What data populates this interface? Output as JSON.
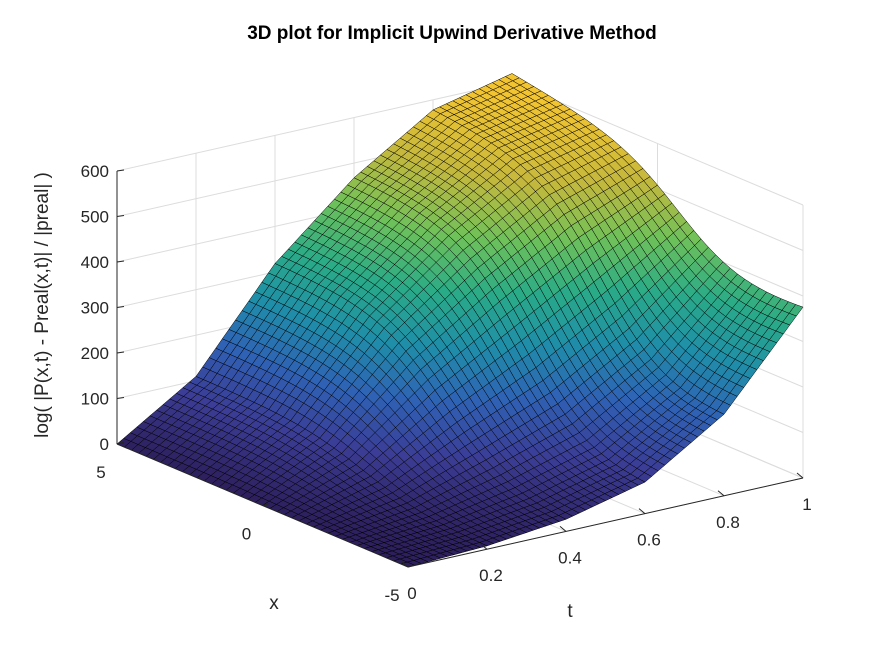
{
  "chart_data": {
    "type": "surface",
    "title": "3D plot for Implicit Upwind Derivative Method",
    "xlabel": "t",
    "ylabel": "x",
    "zlabel": "log( |P(x,t) - Preal(x,t)| / |preal| )",
    "t_range": [
      0,
      1
    ],
    "x_range": [
      -5,
      5
    ],
    "z_range": [
      0,
      600
    ],
    "t_ticks": [
      0,
      0.2,
      0.4,
      0.6,
      0.8,
      1
    ],
    "t_tick_labels": [
      "0",
      "0.2",
      "0.4",
      "0.6",
      "0.8",
      "1"
    ],
    "x_ticks": [
      -5,
      0,
      5
    ],
    "x_tick_labels": [
      "-5",
      "0",
      "5"
    ],
    "z_ticks": [
      0,
      100,
      200,
      300,
      400,
      500,
      600
    ],
    "z_tick_labels": [
      "0",
      "100",
      "200",
      "300",
      "400",
      "500",
      "600"
    ],
    "grid": true,
    "colormap": [
      "#2d1f5c",
      "#3b3d96",
      "#2f62b5",
      "#1f8ea9",
      "#2aab87",
      "#6fc15a",
      "#c4b83d",
      "#f2c430"
    ],
    "edge_color": "#000000",
    "surface_samples": {
      "t": [
        0,
        0.2,
        0.4,
        0.6,
        0.8,
        1
      ],
      "peak_at_x_5": [
        0,
        110,
        320,
        470,
        580,
        620
      ],
      "peak_at_x_-5": [
        0,
        5,
        20,
        60,
        170,
        370
      ]
    }
  }
}
